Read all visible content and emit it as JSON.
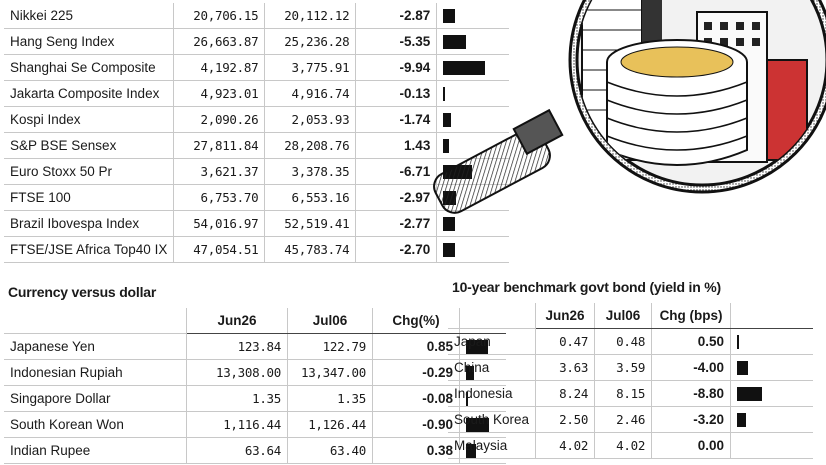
{
  "indices": {
    "rows": [
      {
        "name": "Nikkei 225",
        "jun26": "20,706.15",
        "jul06": "20,112.12",
        "chg": "-2.87",
        "bar": 2.87
      },
      {
        "name": "Hang Seng Index",
        "jun26": "26,663.87",
        "jul06": "25,236.28",
        "chg": "-5.35",
        "bar": 5.35
      },
      {
        "name": "Shanghai Se Composite",
        "jun26": "4,192.87",
        "jul06": "3,775.91",
        "chg": "-9.94",
        "bar": 9.94
      },
      {
        "name": "Jakarta Composite Index",
        "jun26": "4,923.01",
        "jul06": "4,916.74",
        "chg": "-0.13",
        "bar": 0.13
      },
      {
        "name": "Kospi Index",
        "jun26": "2,090.26",
        "jul06": "2,053.93",
        "chg": "-1.74",
        "bar": 1.74
      },
      {
        "name": "S&P BSE Sensex",
        "jun26": "27,811.84",
        "jul06": "28,208.76",
        "chg": "1.43",
        "bar": 1.43
      },
      {
        "name": "Euro Stoxx 50 Pr",
        "jun26": "3,621.37",
        "jul06": "3,378.35",
        "chg": "-6.71",
        "bar": 6.71
      },
      {
        "name": "FTSE 100",
        "jun26": "6,753.70",
        "jul06": "6,553.16",
        "chg": "-2.97",
        "bar": 2.97
      },
      {
        "name": "Brazil Ibovespa Index",
        "jun26": "54,016.97",
        "jul06": "52,519.41",
        "chg": "-2.77",
        "bar": 2.77
      },
      {
        "name": "FTSE/JSE Africa Top40 IX",
        "jun26": "47,054.51",
        "jul06": "45,783.74",
        "chg": "-2.70",
        "bar": 2.7
      }
    ]
  },
  "currency": {
    "title": "Currency versus dollar",
    "headers": [
      "",
      "Jun26",
      "Jul06",
      "Chg(%)",
      ""
    ],
    "rows": [
      {
        "name": "Japanese Yen",
        "jun26": "123.84",
        "jul06": "122.79",
        "chg": "0.85",
        "bar": 0.85
      },
      {
        "name": "Indonesian Rupiah",
        "jun26": "13,308.00",
        "jul06": "13,347.00",
        "chg": "-0.29",
        "bar": 0.29
      },
      {
        "name": "Singapore Dollar",
        "jun26": "1.35",
        "jul06": "1.35",
        "chg": "-0.08",
        "bar": 0.08
      },
      {
        "name": "South Korean Won",
        "jun26": "1,116.44",
        "jul06": "1,126.44",
        "chg": "-0.90",
        "bar": 0.9
      },
      {
        "name": "Indian Rupee",
        "jun26": "63.64",
        "jul06": "63.40",
        "chg": "0.38",
        "bar": 0.38
      }
    ]
  },
  "bonds": {
    "title": "10-year benchmark govt bond (yield in %)",
    "headers": [
      "",
      "Jun26",
      "Jul06",
      "Chg (bps)",
      ""
    ],
    "rows": [
      {
        "name": "Japan",
        "jun26": "0.47",
        "jul06": "0.48",
        "chg": "0.50",
        "bar": 0.5
      },
      {
        "name": "China",
        "jun26": "3.63",
        "jul06": "3.59",
        "chg": "-4.00",
        "bar": 4.0
      },
      {
        "name": "Indonesia",
        "jun26": "8.24",
        "jul06": "8.15",
        "chg": "-8.80",
        "bar": 8.8
      },
      {
        "name": "South Korea",
        "jun26": "2.50",
        "jul06": "2.46",
        "chg": "-3.20",
        "bar": 3.2
      },
      {
        "name": "Malaysia",
        "jun26": "4.02",
        "jul06": "4.02",
        "chg": "0.00",
        "bar": 0.0
      }
    ]
  },
  "illustration": {
    "icon": "magnifying-glass-city-icon"
  }
}
